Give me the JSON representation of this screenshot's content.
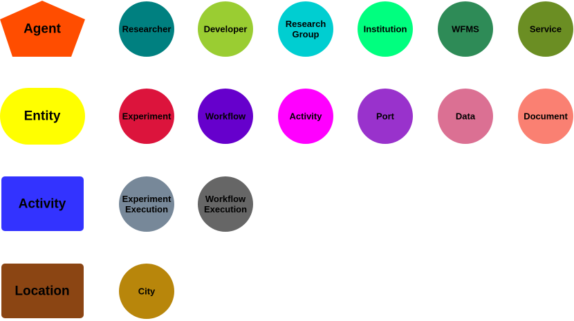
{
  "categories": [
    {
      "key": "agent",
      "label": "Agent",
      "shape": "pentagon",
      "color": "#FF4D00",
      "nodes": [
        {
          "key": "researcher",
          "label": "Researcher",
          "color": "#008080"
        },
        {
          "key": "developer",
          "label": "Developer",
          "color": "#9ACD32"
        },
        {
          "key": "research-group",
          "label": "Research\nGroup",
          "color": "#00CED1"
        },
        {
          "key": "institution",
          "label": "Institution",
          "color": "#00FF7F"
        },
        {
          "key": "wfms",
          "label": "WFMS",
          "color": "#2E8B57"
        },
        {
          "key": "service",
          "label": "Service",
          "color": "#6B8E23"
        }
      ]
    },
    {
      "key": "entity",
      "label": "Entity",
      "shape": "stadium",
      "color": "#FFFF00",
      "nodes": [
        {
          "key": "experiment",
          "label": "Experiment",
          "color": "#DC143C"
        },
        {
          "key": "workflow",
          "label": "Workflow",
          "color": "#6600CC"
        },
        {
          "key": "activity",
          "label": "Activity",
          "color": "#FF00FF"
        },
        {
          "key": "port",
          "label": "Port",
          "color": "#9932CC"
        },
        {
          "key": "data",
          "label": "Data",
          "color": "#DB7093"
        },
        {
          "key": "document",
          "label": "Document",
          "color": "#FA8072"
        }
      ]
    },
    {
      "key": "activity",
      "label": "Activity",
      "shape": "rounded-rect",
      "color": "#3333FF",
      "nodes": [
        {
          "key": "experiment-execution",
          "label": "Experiment\nExecution",
          "color": "#778899"
        },
        {
          "key": "workflow-execution",
          "label": "Workflow\nExecution",
          "color": "#666666"
        }
      ]
    },
    {
      "key": "location",
      "label": "Location",
      "shape": "rounded-rect",
      "color": "#8B4513",
      "nodes": [
        {
          "key": "city",
          "label": "City",
          "color": "#B8860B"
        }
      ]
    }
  ]
}
